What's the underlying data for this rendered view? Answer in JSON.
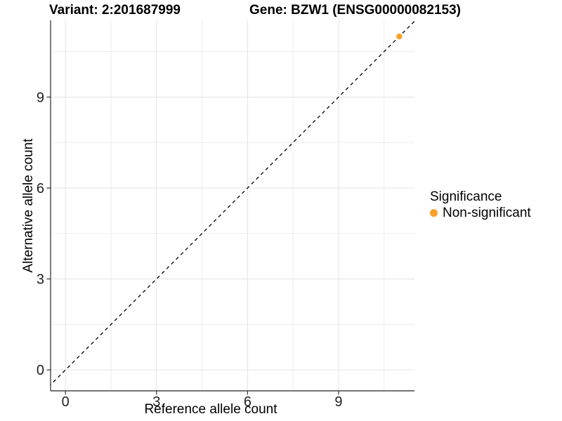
{
  "chart_data": {
    "type": "scatter",
    "title_left": "Variant: 2:201687999",
    "title_right": "Gene: BZW1 (ENSG00000082153)",
    "xlabel": "Reference allele count",
    "ylabel": "Alternative allele count",
    "xlim": [
      -0.49,
      11.5
    ],
    "ylim": [
      -0.69,
      11.53
    ],
    "x_major_ticks": [
      0,
      3,
      6,
      9
    ],
    "x_minor_ticks": [
      1.5,
      4.5,
      7.5,
      10.5
    ],
    "y_major_ticks": [
      0,
      3,
      6,
      9
    ],
    "y_minor_ticks": [
      1.5,
      4.5,
      7.5,
      10.5
    ],
    "grid": "major+minor",
    "identity_line": {
      "style": "dashed",
      "slope": 1,
      "intercept": 0,
      "color": "#000000"
    },
    "series": [
      {
        "name": "Non-significant",
        "color": "#F9A12B",
        "points": [
          {
            "x": 11,
            "y": 11
          }
        ]
      }
    ],
    "legend": {
      "title": "Significance",
      "position": "right",
      "items": [
        {
          "label": "Non-significant",
          "color": "#F9A12B",
          "marker": "dot"
        }
      ]
    },
    "style": {
      "background": "#FFFFFF",
      "grid_major_color": "#E3E3E3",
      "grid_minor_color": "#EDEDED",
      "axis_line_color": "#464646",
      "tick_color": "#333333",
      "tick_label_color": "#1F1F1F"
    }
  }
}
